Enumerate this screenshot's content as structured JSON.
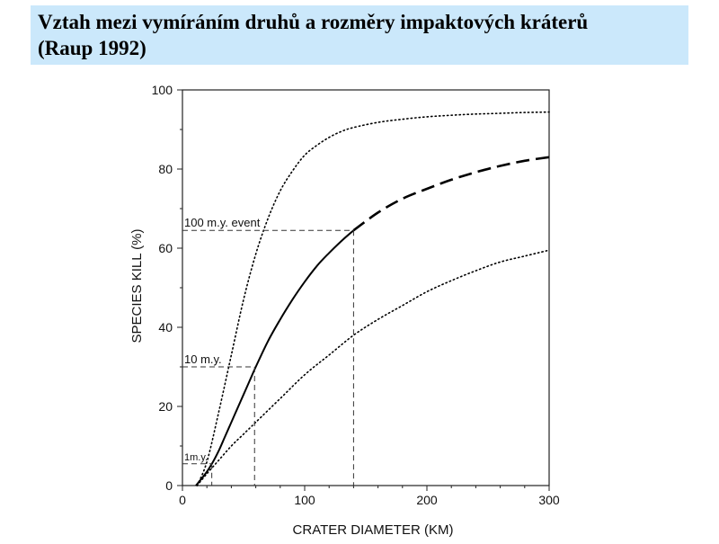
{
  "slide": {
    "title_line1": "Vztah mezi vymíráním druhů a rozměry impaktových kráterů",
    "title_line2": "(Raup 1992)",
    "title_band_color": "#cbe8fb"
  },
  "chart_data": {
    "type": "line",
    "xlabel": "CRATER DIAMETER  (KM)",
    "ylabel": "SPECIES KILL (%)",
    "xlim": [
      0,
      300
    ],
    "ylim": [
      0,
      100
    ],
    "x_ticks": [
      0,
      100,
      200,
      300
    ],
    "y_ticks": [
      0,
      20,
      40,
      60,
      80,
      100
    ],
    "x_minor_ticks": [
      20,
      40,
      60,
      80,
      120,
      140,
      160,
      180,
      220,
      240,
      260,
      280
    ],
    "y_minor_ticks": [
      10,
      30,
      50,
      70,
      90
    ],
    "grid": false,
    "series": [
      {
        "style": "solid",
        "x": [
          11,
          15,
          20,
          25,
          30,
          35,
          40,
          45,
          50,
          55,
          60,
          70,
          80,
          90,
          100,
          110,
          120,
          130,
          140
        ],
        "y": [
          0,
          1.5,
          3.5,
          6,
          9,
          12.5,
          16,
          19.5,
          23,
          26.5,
          30,
          36.5,
          42,
          47,
          51.5,
          55.5,
          58.8,
          61.8,
          64.5
        ]
      },
      {
        "style": "dashed",
        "x": [
          140,
          160,
          180,
          200,
          220,
          240,
          260,
          280,
          300
        ],
        "y": [
          64.5,
          69,
          72.5,
          75,
          77.3,
          79.2,
          80.8,
          82.1,
          83
        ]
      },
      {
        "style": "dotted",
        "x": [
          12,
          20,
          30,
          40,
          50,
          60,
          70,
          80,
          90,
          100,
          110,
          120,
          130,
          140,
          160,
          180,
          200,
          220,
          240,
          260,
          280,
          300
        ],
        "y": [
          0,
          6,
          19,
          33,
          47,
          58.5,
          67.5,
          74.5,
          79.5,
          83.5,
          86,
          88,
          89.5,
          90.5,
          91.8,
          92.6,
          93.2,
          93.6,
          93.9,
          94.1,
          94.3,
          94.4
        ]
      },
      {
        "style": "dotted",
        "x": [
          12,
          20,
          30,
          40,
          50,
          60,
          80,
          100,
          120,
          140,
          160,
          180,
          200,
          220,
          240,
          260,
          280,
          300
        ],
        "y": [
          0,
          3,
          6.5,
          10,
          13,
          16,
          22,
          28,
          33,
          38,
          42,
          45.5,
          49,
          51.8,
          54.3,
          56.5,
          58,
          59.5
        ]
      }
    ],
    "reference_lines": [
      {
        "label": "1m.y.",
        "x": 24,
        "y": 5.5
      },
      {
        "label": "10 m.y.",
        "x": 59,
        "y": 30
      },
      {
        "label": "100 m.y. event",
        "x": 140,
        "y": 64.5
      }
    ]
  }
}
